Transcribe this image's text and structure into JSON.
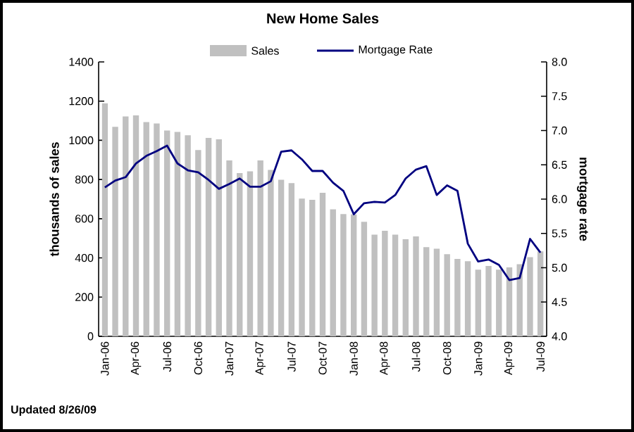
{
  "chart_data": {
    "type": "bar",
    "title": "New Home Sales",
    "ylabel": "thousands of sales",
    "y2label": "mortgage rate",
    "annotations": [
      "Updated 8/26/09"
    ],
    "categories": [
      "Jan-06",
      null,
      null,
      "Apr-06",
      null,
      null,
      "Jul-06",
      null,
      null,
      "Oct-06",
      null,
      null,
      "Jan-07",
      null,
      null,
      "Apr-07",
      null,
      null,
      "Jul-07",
      null,
      null,
      "Oct-07",
      null,
      null,
      "Jan-08",
      null,
      null,
      "Apr-08",
      null,
      null,
      "Jul-08",
      null,
      null,
      "Oct-08",
      null,
      null,
      "Jan-09",
      null,
      null,
      "Apr-09",
      null,
      null,
      "Jul-09"
    ],
    "series": [
      {
        "name": "Sales",
        "color": "#c0c0c0",
        "values": [
          1189,
          1069,
          1122,
          1127,
          1093,
          1086,
          1050,
          1043,
          1026,
          950,
          1012,
          1005,
          897,
          833,
          842,
          897,
          849,
          799,
          782,
          703,
          696,
          732,
          648,
          624,
          622,
          584,
          519,
          538,
          519,
          495,
          510,
          455,
          447,
          419,
          395,
          383,
          340,
          359,
          340,
          352,
          368,
          404,
          433
        ]
      },
      {
        "name": "Mortgage Rate",
        "type": "line",
        "axis": "y2",
        "color": "#000080",
        "values": [
          6.17,
          6.27,
          6.32,
          6.52,
          6.63,
          6.7,
          6.78,
          6.52,
          6.42,
          6.39,
          6.28,
          6.15,
          6.22,
          6.3,
          6.18,
          6.18,
          6.26,
          6.69,
          6.71,
          6.58,
          6.41,
          6.41,
          6.24,
          6.12,
          5.78,
          5.94,
          5.96,
          5.95,
          6.06,
          6.3,
          6.43,
          6.48,
          6.06,
          6.2,
          6.12,
          5.35,
          5.09,
          5.12,
          5.04,
          4.82,
          4.85,
          5.42,
          5.22
        ]
      }
    ],
    "ylim": [
      0,
      1400
    ],
    "yticks": [
      0,
      200,
      400,
      600,
      800,
      1000,
      1200,
      1400
    ],
    "y2lim": [
      4,
      8
    ],
    "y2ticks": [
      {
        "value": 4,
        "label": "4.0"
      },
      {
        "value": 4.5,
        "label": "4.5"
      },
      {
        "value": 5,
        "label": "5.0"
      },
      {
        "value": 5.5,
        "label": "5.5"
      },
      {
        "value": 6,
        "label": "6.0"
      },
      {
        "value": 6.5,
        "label": "6.5"
      },
      {
        "value": 7,
        "label": "7.0"
      },
      {
        "value": 7.5,
        "label": "7.5"
      },
      {
        "value": 8,
        "label": "8.0"
      }
    ],
    "grid": false,
    "legend": "top"
  }
}
